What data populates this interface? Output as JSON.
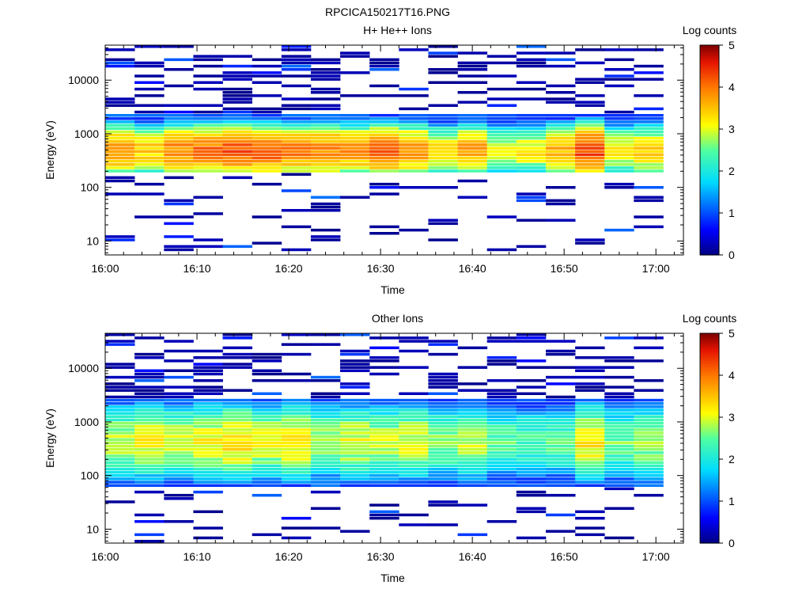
{
  "figure": {
    "title": "RPCICA150217T16.PNG"
  },
  "chart_data": [
    {
      "type": "heatmap",
      "title": "H+ He++ Ions",
      "xlabel": "Time",
      "ylabel": "Energy (eV)",
      "x_ticks": [
        "16:00",
        "16:10",
        "16:20",
        "16:30",
        "16:40",
        "16:50",
        "17:00"
      ],
      "x_range_minutes": [
        0,
        63
      ],
      "y_ticks": [
        10,
        100,
        1000,
        10000
      ],
      "y_tick_labels": [
        "10",
        "100",
        "1000",
        "10000"
      ],
      "y_scale": "log",
      "ylim": [
        5.5,
        45000
      ],
      "colorbar": {
        "label": "Log counts",
        "min": 0,
        "max": 5,
        "ticks": [
          "0",
          "1",
          "2",
          "3",
          "4",
          "5"
        ]
      },
      "time_bins_minutes": [
        0,
        3.2,
        6.4,
        9.6,
        12.8,
        16,
        19.2,
        22.4,
        25.6,
        28.8,
        32,
        35.2,
        38.4,
        41.6,
        44.8,
        48,
        51.2,
        54.4,
        57.6
      ],
      "core_peak_log_counts": [
        3.8,
        3.4,
        3.9,
        4.0,
        4.2,
        4.1,
        3.9,
        3.9,
        3.8,
        4.1,
        3.8,
        3.3,
        3.7,
        3.0,
        3.2,
        3.6,
        4.3,
        3.2,
        3.4
      ],
      "core_energy_range_eV": [
        190,
        2200
      ],
      "core_center_eV": 480
    },
    {
      "type": "heatmap",
      "title": "Other Ions",
      "xlabel": "Time",
      "ylabel": "Energy (eV)",
      "x_ticks": [
        "16:00",
        "16:10",
        "16:20",
        "16:30",
        "16:40",
        "16:50",
        "17:00"
      ],
      "x_range_minutes": [
        0,
        63
      ],
      "y_ticks": [
        10,
        100,
        1000,
        10000
      ],
      "y_tick_labels": [
        "10",
        "100",
        "1000",
        "10000"
      ],
      "y_scale": "log",
      "ylim": [
        5.5,
        45000
      ],
      "colorbar": {
        "label": "Log counts",
        "min": 0,
        "max": 5,
        "ticks": [
          "0",
          "1",
          "2",
          "3",
          "4",
          "5"
        ]
      },
      "time_bins_minutes": [
        0,
        3.2,
        6.4,
        9.6,
        12.8,
        16,
        19.2,
        22.4,
        25.6,
        28.8,
        32,
        35.2,
        38.4,
        41.6,
        44.8,
        48,
        51.2,
        54.4,
        57.6
      ],
      "core_peak_log_counts": [
        2.9,
        3.1,
        3.0,
        3.1,
        3.3,
        3.0,
        3.2,
        2.8,
        3.0,
        2.9,
        3.0,
        2.7,
        2.9,
        2.5,
        2.4,
        2.5,
        3.2,
        2.6,
        2.8
      ],
      "core_energy_range_eV": [
        60,
        2600
      ],
      "core_center_eV": 420
    }
  ]
}
